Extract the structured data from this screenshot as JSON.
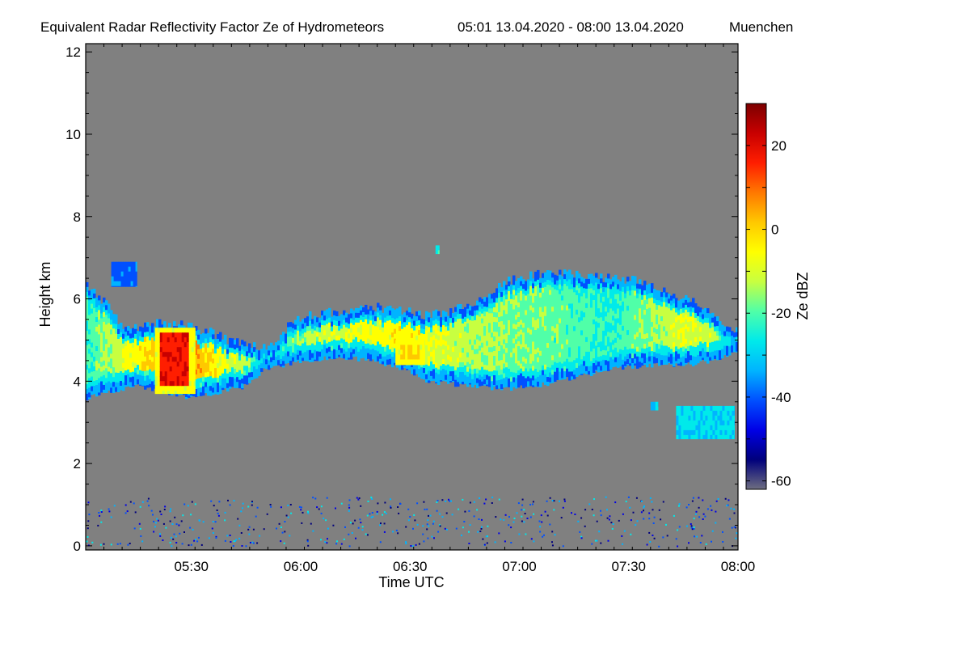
{
  "chart_data": {
    "type": "heatmap",
    "title": "Equivalent Radar Reflectivity Factor Ze of Hydrometeors",
    "period": "05:01 13.04.2020 - 08:00 13.04.2020",
    "location": "Muenchen",
    "xlabel": "Time UTC",
    "ylabel": "Height km",
    "x_unit": "minutes since 00:00 UTC",
    "xlim": [
      301,
      480
    ],
    "ylim": [
      -0.1,
      12.2
    ],
    "x_ticks": [
      {
        "value": 330,
        "label": "05:30"
      },
      {
        "value": 360,
        "label": "06:00"
      },
      {
        "value": 390,
        "label": "06:30"
      },
      {
        "value": 420,
        "label": "07:00"
      },
      {
        "value": 450,
        "label": "07:30"
      },
      {
        "value": 480,
        "label": "08:00"
      }
    ],
    "y_ticks": [
      {
        "value": 0,
        "label": "0"
      },
      {
        "value": 2,
        "label": "2"
      },
      {
        "value": 4,
        "label": "4"
      },
      {
        "value": 6,
        "label": "6"
      },
      {
        "value": 8,
        "label": "8"
      },
      {
        "value": 10,
        "label": "10"
      },
      {
        "value": 12,
        "label": "12"
      }
    ],
    "background_color": "#808080",
    "colorbar": {
      "label": "Ze dBZ",
      "range": [
        -62,
        30
      ],
      "ticks": [
        {
          "value": -60,
          "label": "-60"
        },
        {
          "value": -40,
          "label": "-40"
        },
        {
          "value": -20,
          "label": "-20"
        },
        {
          "value": 0,
          "label": "0"
        },
        {
          "value": 20,
          "label": "20"
        }
      ],
      "colors": [
        "#6e6e80",
        "#00007c",
        "#0000e6",
        "#0050ff",
        "#00b4ff",
        "#00eaea",
        "#50ffa8",
        "#c8ff40",
        "#ffff00",
        "#ffc800",
        "#ff7800",
        "#ff1e00",
        "#c80000",
        "#7d0000"
      ]
    },
    "cloud_layer_profile": [
      {
        "t": 301,
        "base": 3.6,
        "top": 6.3,
        "ze": -22
      },
      {
        "t": 305,
        "base": 3.7,
        "top": 6.0,
        "ze": -18
      },
      {
        "t": 310,
        "base": 3.8,
        "top": 5.4,
        "ze": -12
      },
      {
        "t": 315,
        "base": 3.9,
        "top": 5.3,
        "ze": -6
      },
      {
        "t": 320,
        "base": 3.8,
        "top": 5.4,
        "ze": 0
      },
      {
        "t": 325,
        "base": 3.7,
        "top": 5.4,
        "ze": 12
      },
      {
        "t": 330,
        "base": 3.6,
        "top": 5.3,
        "ze": 6
      },
      {
        "t": 335,
        "base": 3.7,
        "top": 5.2,
        "ze": -4
      },
      {
        "t": 340,
        "base": 3.8,
        "top": 5.0,
        "ze": -10
      },
      {
        "t": 345,
        "base": 3.9,
        "top": 4.9,
        "ze": -14
      },
      {
        "t": 350,
        "base": 4.3,
        "top": 4.8,
        "ze": -26
      },
      {
        "t": 356,
        "base": 4.4,
        "top": 5.3,
        "ze": -20
      },
      {
        "t": 360,
        "base": 4.5,
        "top": 5.6,
        "ze": -14
      },
      {
        "t": 370,
        "base": 4.6,
        "top": 5.7,
        "ze": -10
      },
      {
        "t": 380,
        "base": 4.5,
        "top": 5.8,
        "ze": -8
      },
      {
        "t": 388,
        "base": 4.3,
        "top": 5.7,
        "ze": -4
      },
      {
        "t": 395,
        "base": 4.0,
        "top": 5.6,
        "ze": -8
      },
      {
        "t": 405,
        "base": 3.9,
        "top": 5.8,
        "ze": -14
      },
      {
        "t": 415,
        "base": 3.8,
        "top": 6.4,
        "ze": -16
      },
      {
        "t": 425,
        "base": 3.9,
        "top": 6.6,
        "ze": -18
      },
      {
        "t": 435,
        "base": 4.1,
        "top": 6.6,
        "ze": -20
      },
      {
        "t": 445,
        "base": 4.3,
        "top": 6.5,
        "ze": -24
      },
      {
        "t": 455,
        "base": 4.4,
        "top": 6.4,
        "ze": -16
      },
      {
        "t": 465,
        "base": 4.4,
        "top": 6.0,
        "ze": -10
      },
      {
        "t": 472,
        "base": 4.5,
        "top": 5.7,
        "ze": -12
      },
      {
        "t": 480,
        "base": 4.7,
        "top": 5.2,
        "ze": -22
      }
    ],
    "features": [
      {
        "name": "convective-core",
        "t_start": 320,
        "t_end": 331,
        "base": 3.7,
        "top": 5.3,
        "ze": 15
      },
      {
        "name": "upper-streak-0510",
        "t_start": 308,
        "t_end": 315,
        "base": 6.3,
        "top": 6.9,
        "ze": -38
      },
      {
        "name": "bright-patch-0630",
        "t_start": 386,
        "t_end": 394,
        "base": 4.4,
        "top": 5.0,
        "ze": -2
      },
      {
        "name": "isolated-cloud-0740",
        "t_start": 463,
        "t_end": 479,
        "base": 2.6,
        "top": 3.4,
        "ze": -28
      },
      {
        "name": "isolated-speck-0735",
        "t_start": 456,
        "t_end": 458,
        "base": 3.3,
        "top": 3.5,
        "ze": -30
      },
      {
        "name": "isolated-speck-0639",
        "t_start": 397,
        "t_end": 398,
        "base": 7.1,
        "top": 7.3,
        "ze": -25
      }
    ],
    "ground_clutter": {
      "base": 0.0,
      "top": 1.2,
      "ze": -40
    }
  }
}
